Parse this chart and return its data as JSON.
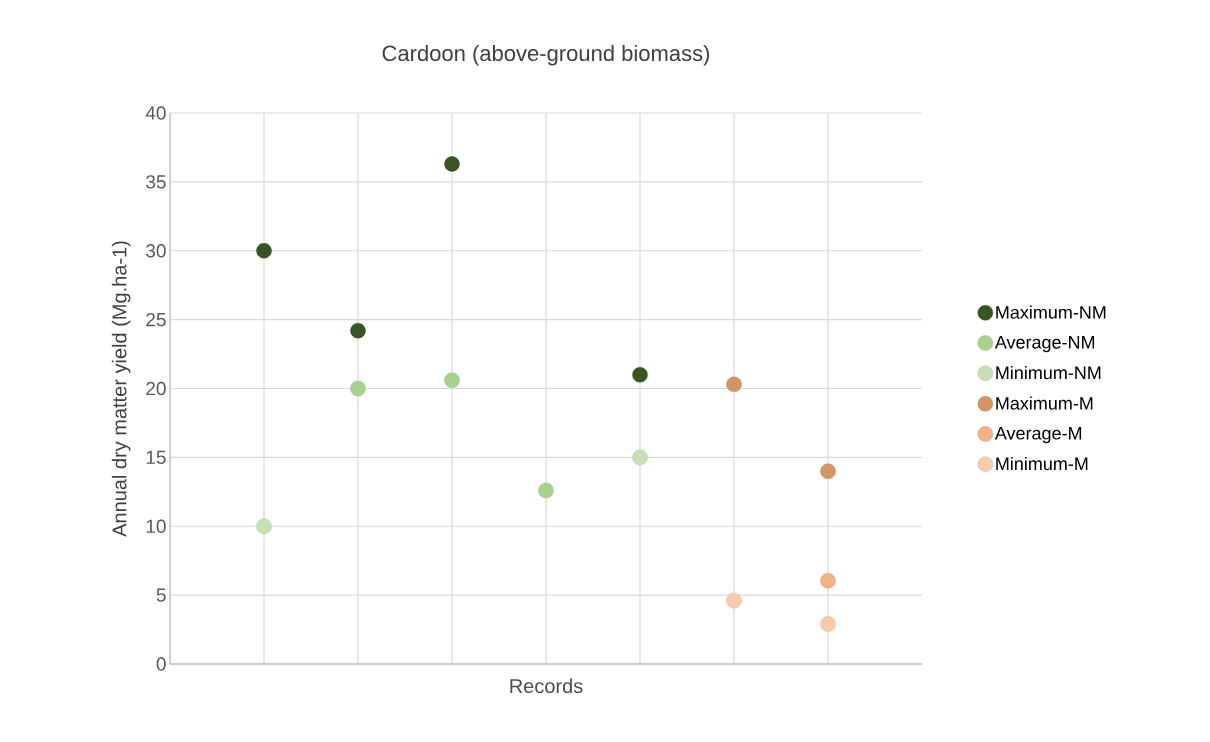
{
  "chart_data": {
    "type": "scatter",
    "title": "Cardoon (above-ground biomass)",
    "xlabel": "Records",
    "ylabel": "Annual dry matter yield (Mg.ha-1)",
    "categories": [
      null,
      null,
      null,
      null,
      null,
      null,
      null
    ],
    "series": [
      {
        "name": "Maximum-NM",
        "color": "#375623",
        "values": [
          30,
          24.2,
          36.3,
          null,
          21,
          null,
          null
        ]
      },
      {
        "name": "Average-NM",
        "color": "#a9d18e",
        "values": [
          null,
          20,
          20.6,
          12.6,
          null,
          null,
          null
        ]
      },
      {
        "name": "Minimum-NM",
        "color": "#c5e0b4",
        "values": [
          10,
          null,
          null,
          null,
          15,
          null,
          null
        ]
      },
      {
        "name": "Maximum-M",
        "color": "#d39466",
        "values": [
          null,
          null,
          null,
          null,
          null,
          20.3,
          14
        ]
      },
      {
        "name": "Average-M",
        "color": "#f4b183",
        "values": [
          null,
          null,
          null,
          null,
          null,
          null,
          6.05
        ]
      },
      {
        "name": "Minimum-M",
        "color": "#f8cbad",
        "values": [
          null,
          null,
          null,
          null,
          null,
          4.6,
          2.9
        ]
      }
    ],
    "ylim": [
      0,
      40
    ],
    "yticks": [
      0,
      5,
      10,
      15,
      20,
      25,
      30,
      35,
      40
    ],
    "grid": true,
    "legend": "right",
    "marker": "circle"
  }
}
